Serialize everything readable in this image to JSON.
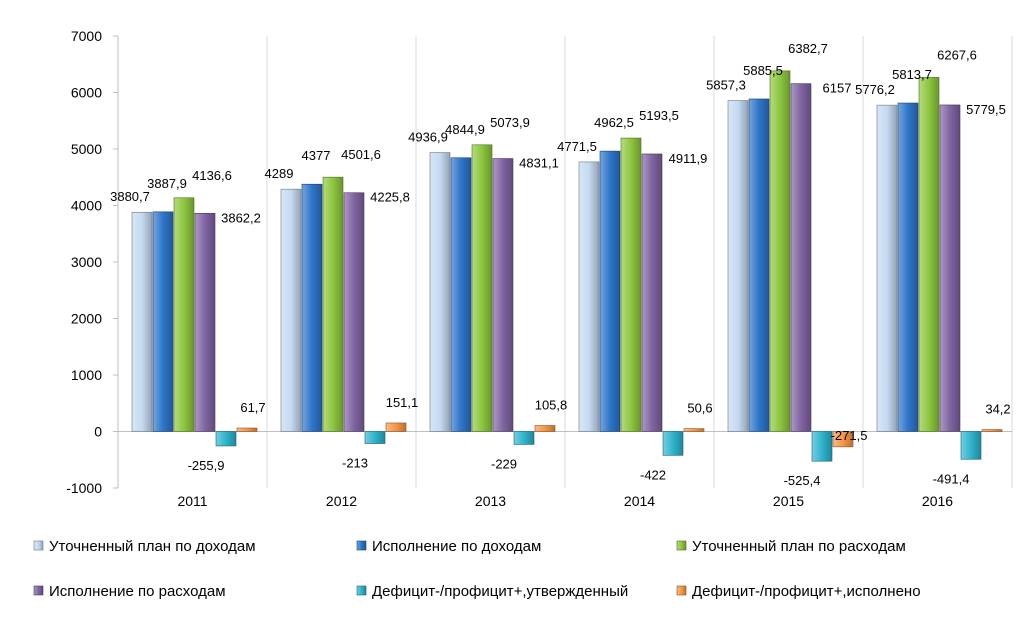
{
  "chart_data": {
    "type": "bar",
    "categories": [
      "2011",
      "2012",
      "2013",
      "2014",
      "2015",
      "2016"
    ],
    "ylim": [
      -1000,
      7000
    ],
    "yticks": [
      -1000,
      0,
      1000,
      2000,
      3000,
      4000,
      5000,
      6000,
      7000
    ],
    "grid": "vertical",
    "legend_position": "bottom",
    "series": [
      {
        "name": "Уточненный план по доходам",
        "color": "#c5d9f1",
        "values": [
          3880.7,
          4289,
          4936.9,
          4771.5,
          5857.3,
          5776.2
        ],
        "labels": [
          "3880,7",
          "4289",
          "4936,9",
          "4771,5",
          "5857,3",
          "5776,2"
        ]
      },
      {
        "name": "Исполнение по доходам",
        "color": "#2e75c9",
        "values": [
          3887.9,
          4377,
          4844.9,
          4962.5,
          5885.5,
          5813.7
        ],
        "labels": [
          "3887,9",
          "4377",
          "4844,9",
          "4962,5",
          "5885,5",
          "5813,7"
        ]
      },
      {
        "name": "Уточненный план по расходам",
        "color": "#8dc63f",
        "values": [
          4136.6,
          4501.6,
          5073.9,
          5193.5,
          6382.7,
          6267.6
        ],
        "labels": [
          "4136,6",
          "4501,6",
          "5073,9",
          "5193,5",
          "6382,7",
          "6267,6"
        ]
      },
      {
        "name": "Исполнение по расходам",
        "color": "#8064a2",
        "values": [
          3862.2,
          4225.8,
          4831.1,
          4911.9,
          6157,
          5779.5
        ],
        "labels": [
          "3862,2",
          "4225,8",
          "4831,1",
          "4911,9",
          "6157",
          "5779,5"
        ]
      },
      {
        "name": "Дефицит-/профицит+,утвержденный",
        "color": "#2eb3cc",
        "values": [
          -255.9,
          -213,
          -229,
          -422,
          -525.4,
          -491.4
        ],
        "labels": [
          "-255,9",
          "-213",
          "-229",
          "-422",
          "-525,4",
          "-491,4"
        ]
      },
      {
        "name": "Дефицит-/профицит+,исполнено",
        "color": "#f79646",
        "values": [
          61.7,
          151.1,
          105.8,
          50.6,
          -271.5,
          34.2
        ],
        "labels": [
          "61,7",
          "151,1",
          "105,8",
          "50,6",
          "-271,5",
          "34,2"
        ]
      }
    ]
  }
}
